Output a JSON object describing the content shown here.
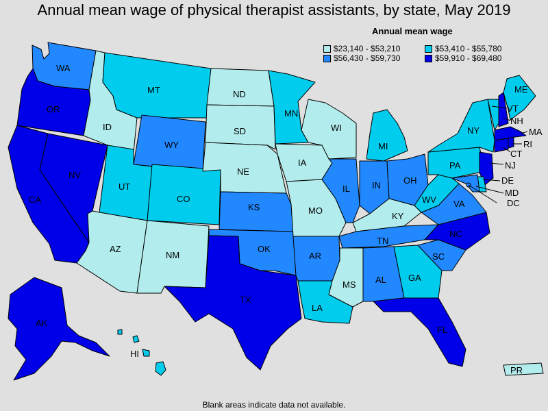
{
  "title": "Annual mean wage of physical therapist assistants, by state, May 2019",
  "legend": {
    "title": "Annual mean wage",
    "items": [
      {
        "label": "$23,140 - $53,210",
        "color": "#b3ecec"
      },
      {
        "label": "$53,410 - $55,780",
        "color": "#00ccee"
      },
      {
        "label": "$56,430 - $59,730",
        "color": "#2288ff"
      },
      {
        "label": "$59,910 - $69,480",
        "color": "#0000e8"
      }
    ]
  },
  "footnote": "Blank areas indicate data not available.",
  "states": {
    "WA": {
      "label": "WA",
      "tier": 2
    },
    "OR": {
      "label": "OR",
      "tier": 3
    },
    "CA": {
      "label": "CA",
      "tier": 3
    },
    "NV": {
      "label": "NV",
      "tier": 3
    },
    "ID": {
      "label": "ID",
      "tier": 0
    },
    "MT": {
      "label": "MT",
      "tier": 1
    },
    "WY": {
      "label": "WY",
      "tier": 2
    },
    "UT": {
      "label": "UT",
      "tier": 1
    },
    "CO": {
      "label": "CO",
      "tier": 1
    },
    "AZ": {
      "label": "AZ",
      "tier": 0
    },
    "NM": {
      "label": "NM",
      "tier": 0
    },
    "ND": {
      "label": "ND",
      "tier": 0
    },
    "SD": {
      "label": "SD",
      "tier": 0
    },
    "NE": {
      "label": "NE",
      "tier": 0
    },
    "KS": {
      "label": "KS",
      "tier": 2
    },
    "OK": {
      "label": "OK",
      "tier": 2
    },
    "TX": {
      "label": "TX",
      "tier": 3
    },
    "MN": {
      "label": "MN",
      "tier": 1
    },
    "IA": {
      "label": "IA",
      "tier": 0
    },
    "MO": {
      "label": "MO",
      "tier": 0
    },
    "AR": {
      "label": "AR",
      "tier": 2
    },
    "LA": {
      "label": "LA",
      "tier": 1
    },
    "WI": {
      "label": "WI",
      "tier": 0
    },
    "IL": {
      "label": "IL",
      "tier": 2
    },
    "MI": {
      "label": "MI",
      "tier": 1
    },
    "IN": {
      "label": "IN",
      "tier": 2
    },
    "OH": {
      "label": "OH",
      "tier": 2
    },
    "KY": {
      "label": "KY",
      "tier": 0
    },
    "TN": {
      "label": "TN",
      "tier": 2
    },
    "MS": {
      "label": "MS",
      "tier": 0
    },
    "AL": {
      "label": "AL",
      "tier": 2
    },
    "GA": {
      "label": "GA",
      "tier": 1
    },
    "FL": {
      "label": "FL",
      "tier": 3
    },
    "SC": {
      "label": "SC",
      "tier": 2
    },
    "NC": {
      "label": "NC",
      "tier": 3
    },
    "VA": {
      "label": "VA",
      "tier": 2
    },
    "WV": {
      "label": "WV",
      "tier": 1
    },
    "PA": {
      "label": "PA",
      "tier": 1
    },
    "NY": {
      "label": "NY",
      "tier": 1
    },
    "VT": {
      "label": "VT",
      "tier": 1
    },
    "NH": {
      "label": "NH",
      "tier": 3
    },
    "ME": {
      "label": "ME",
      "tier": 1
    },
    "MA": {
      "label": "MA",
      "tier": 3
    },
    "RI": {
      "label": "RI",
      "tier": 3
    },
    "CT": {
      "label": "CT",
      "tier": 3
    },
    "NJ": {
      "label": "NJ",
      "tier": 3
    },
    "DE": {
      "label": "DE",
      "tier": 1
    },
    "MD": {
      "label": "MD",
      "tier": 2
    },
    "DC": {
      "label": "DC",
      "tier": 2
    },
    "AK": {
      "label": "AK",
      "tier": 3
    },
    "HI": {
      "label": "HI",
      "tier": 1
    },
    "PR": {
      "label": "PR",
      "tier": 0
    }
  }
}
